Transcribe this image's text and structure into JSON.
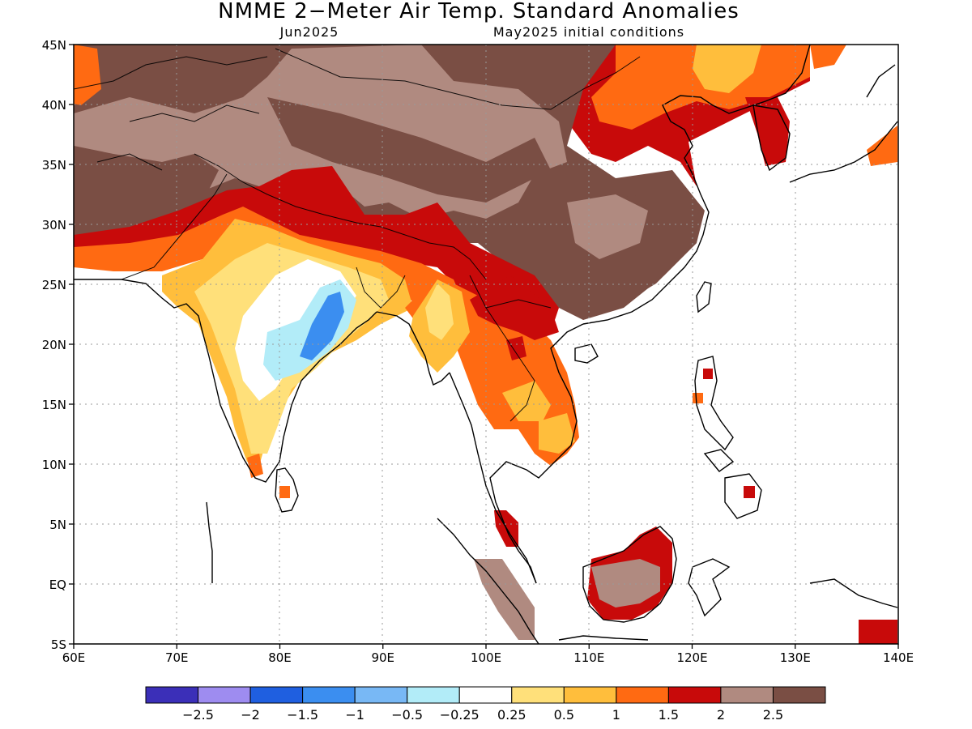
{
  "title": "NMME 2−Meter Air Temp. Standard Anomalies",
  "subtitle_left": "Jun2025",
  "subtitle_right": "May2025 initial conditions",
  "axes": {
    "lat_labels": [
      "45N",
      "40N",
      "35N",
      "30N",
      "25N",
      "20N",
      "15N",
      "10N",
      "5N",
      "EQ",
      "5S"
    ],
    "lat_values": [
      45,
      40,
      35,
      30,
      25,
      20,
      15,
      10,
      5,
      0,
      -5
    ],
    "lon_labels": [
      "60E",
      "70E",
      "80E",
      "90E",
      "100E",
      "110E",
      "120E",
      "130E",
      "140E"
    ],
    "lon_values": [
      60,
      70,
      80,
      90,
      100,
      110,
      120,
      130,
      140
    ],
    "lon_range": [
      60,
      140
    ],
    "lat_range": [
      -5,
      45
    ],
    "grid": "dotted"
  },
  "colorbar": {
    "labels": [
      "−2.5",
      "−2",
      "−1.5",
      "−1",
      "−0.5",
      "−0.25",
      "0.25",
      "0.5",
      "1",
      "1.5",
      "2",
      "2.5"
    ],
    "colors": [
      "#3b2fb8",
      "#9e8cf0",
      "#1f5fe0",
      "#3b8ef0",
      "#78b8f5",
      "#b2ecf8",
      "#ffffff",
      "#ffe07a",
      "#ffbe3c",
      "#ff6a12",
      "#c80a0a",
      "#b08a80",
      "#7a4e44"
    ]
  },
  "palette": {
    "land_outline": "#000000",
    "ocean": "#ffffff"
  }
}
